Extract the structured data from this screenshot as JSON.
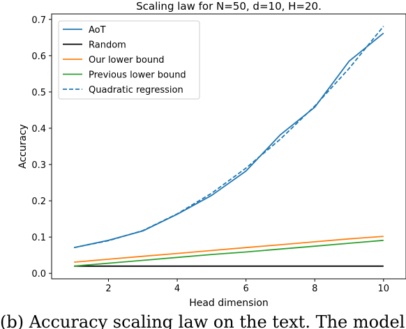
{
  "chart_data": {
    "type": "line",
    "title": "Scaling law for N=50, d=10, H=20.",
    "xlabel": "Head dimension",
    "ylabel": "Accuracy",
    "xlim": [
      0.55,
      10.45
    ],
    "ylim": [
      -0.015,
      0.715
    ],
    "xticks": [
      2,
      4,
      6,
      8,
      10
    ],
    "yticks": [
      0.0,
      0.1,
      0.2,
      0.3,
      0.4,
      0.5,
      0.6,
      0.7
    ],
    "legend_position": "top-left",
    "grid": false,
    "x": [
      1,
      2,
      3,
      4,
      5,
      6,
      7,
      8,
      9,
      10
    ],
    "series": [
      {
        "name": "AoT",
        "color": "#1f77b4",
        "style": "solid",
        "values": [
          0.071,
          0.091,
          0.117,
          0.163,
          0.215,
          0.282,
          0.382,
          0.458,
          0.585,
          0.662
        ]
      },
      {
        "name": "Random",
        "color": "#000000",
        "style": "solid",
        "values": [
          0.02,
          0.02,
          0.02,
          0.02,
          0.02,
          0.02,
          0.02,
          0.02,
          0.02,
          0.02
        ]
      },
      {
        "name": "Our lower bound",
        "color": "#ff7f0e",
        "style": "solid",
        "values": [
          0.031,
          0.039,
          0.047,
          0.055,
          0.063,
          0.071,
          0.079,
          0.087,
          0.095,
          0.102
        ]
      },
      {
        "name": "Previous lower bound",
        "color": "#2ca02c",
        "style": "solid",
        "values": [
          0.02,
          0.028,
          0.036,
          0.044,
          0.052,
          0.059,
          0.067,
          0.075,
          0.083,
          0.091
        ]
      },
      {
        "name": "Quadratic regression",
        "color": "#1f77b4",
        "style": "dashed",
        "values": [
          0.071,
          0.09,
          0.118,
          0.164,
          0.221,
          0.29,
          0.37,
          0.461,
          0.565,
          0.681
        ]
      }
    ]
  },
  "caption": "(b) Accuracy scaling law on the text. The model h"
}
